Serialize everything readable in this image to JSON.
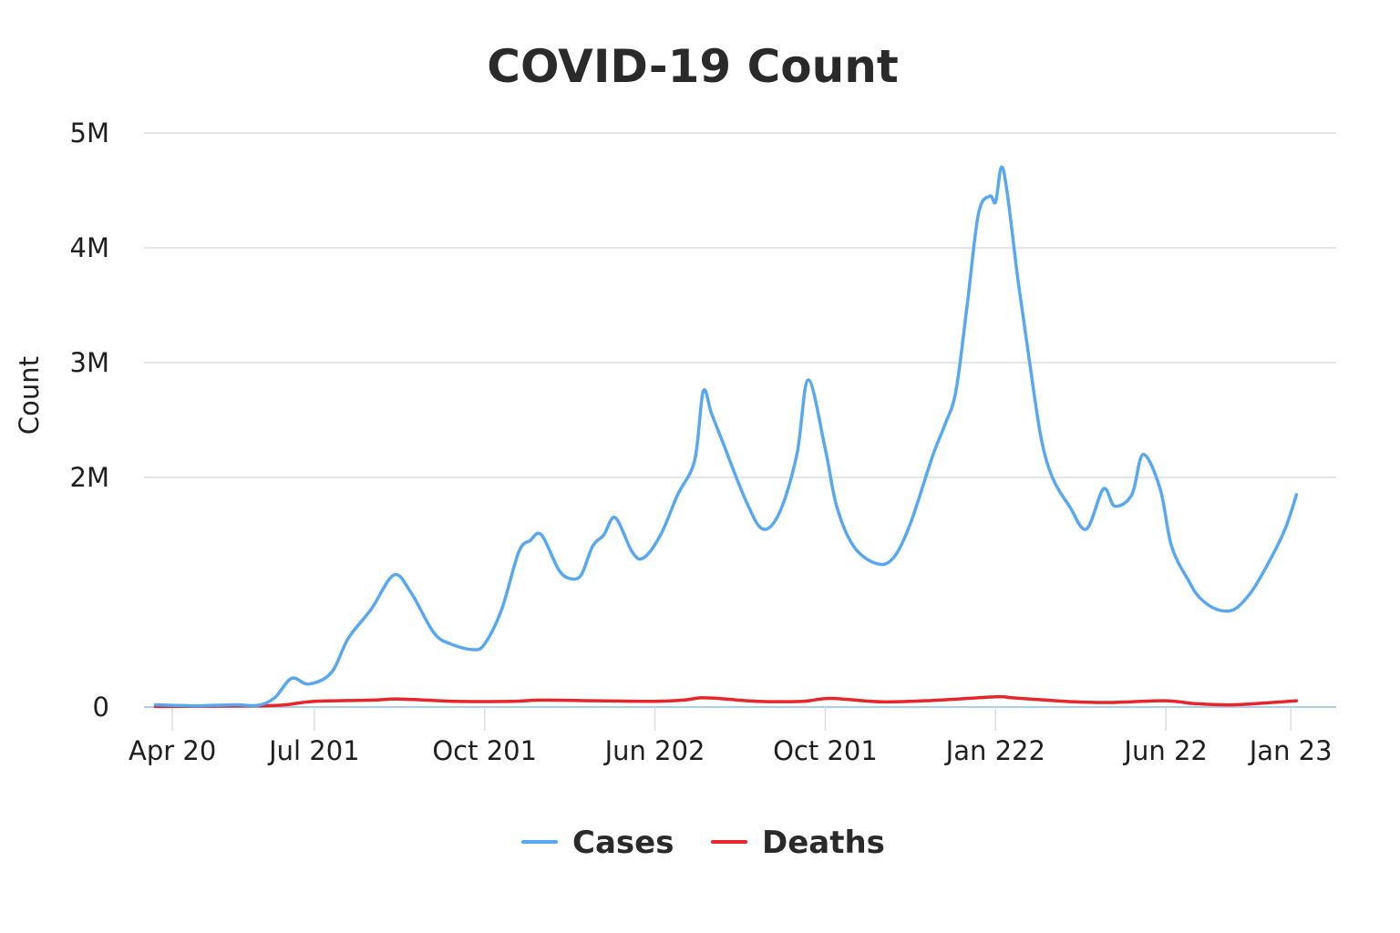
{
  "colors": {
    "cases": "#58a8f0",
    "deaths": "#e8252a",
    "grid": "#d9dde3",
    "baseline": "#a8cdef"
  },
  "chart_data": {
    "type": "line",
    "title": "COVID-19 Count",
    "xlabel": "",
    "ylabel": "Count",
    "ylim": [
      0,
      5000000
    ],
    "y_ticks": [
      {
        "value": 0,
        "label": "0"
      },
      {
        "value": 2000000,
        "label": "2M"
      },
      {
        "value": 3000000,
        "label": "3M"
      },
      {
        "value": 4000000,
        "label": "4M"
      },
      {
        "value": 5000000,
        "label": "5M"
      }
    ],
    "x_ticks": [
      {
        "x": 0.5,
        "label": "Apr 20"
      },
      {
        "x": 3,
        "label": "Jul 201"
      },
      {
        "x": 6,
        "label": "Oct 201"
      },
      {
        "x": 9,
        "label": "Jun 202"
      },
      {
        "x": 12,
        "label": "Oct 201"
      },
      {
        "x": 15,
        "label": "Jan 222"
      },
      {
        "x": 18,
        "label": "Jun 22"
      },
      {
        "x": 20.2,
        "label": "Jan 23"
      }
    ],
    "xlim": [
      0,
      21
    ],
    "grid": true,
    "legend_position": "bottom",
    "series": [
      {
        "name": "Cases",
        "color_key": "cases",
        "x": [
          0.2,
          0.9,
          1.6,
          2.0,
          2.3,
          2.6,
          2.9,
          3.3,
          3.6,
          4.0,
          4.4,
          4.7,
          5.1,
          5.4,
          5.8,
          6.0,
          6.3,
          6.6,
          6.8,
          7.0,
          7.3,
          7.5,
          7.7,
          7.9,
          8.1,
          8.3,
          8.6,
          8.8,
          9.1,
          9.4,
          9.7,
          9.85,
          10.0,
          10.2,
          10.6,
          10.9,
          11.2,
          11.5,
          11.7,
          12.0,
          12.2,
          12.5,
          12.9,
          13.2,
          13.5,
          13.9,
          14.1,
          14.3,
          14.5,
          14.7,
          14.9,
          15.0,
          15.1,
          15.2,
          15.4,
          15.6,
          15.8,
          16.0,
          16.3,
          16.6,
          16.9,
          17.1,
          17.4,
          17.6,
          17.9,
          18.1,
          18.4,
          18.6,
          18.9,
          19.2,
          19.5,
          19.8,
          20.1,
          20.3
        ],
        "y": [
          20000,
          10000,
          20000,
          15000,
          80000,
          250000,
          200000,
          300000,
          600000,
          850000,
          1150000,
          1000000,
          650000,
          550000,
          500000,
          550000,
          850000,
          1350000,
          1450000,
          1500000,
          1200000,
          1120000,
          1150000,
          1400000,
          1500000,
          1650000,
          1350000,
          1300000,
          1500000,
          1850000,
          2150000,
          2750000,
          2550000,
          2300000,
          1800000,
          1550000,
          1700000,
          2200000,
          2850000,
          2250000,
          1750000,
          1400000,
          1250000,
          1300000,
          1600000,
          2200000,
          2450000,
          2750000,
          3500000,
          4300000,
          4450000,
          4400000,
          4700000,
          4500000,
          3700000,
          3000000,
          2350000,
          2000000,
          1750000,
          1550000,
          1900000,
          1750000,
          1850000,
          2200000,
          1900000,
          1400000,
          1100000,
          950000,
          850000,
          850000,
          1000000,
          1250000,
          1550000,
          1850000
        ]
      },
      {
        "name": "Deaths",
        "color_key": "deaths",
        "x": [
          0.2,
          2.0,
          2.5,
          3.0,
          4.0,
          4.5,
          5.5,
          6.5,
          7.0,
          8.0,
          9.0,
          9.5,
          9.8,
          10.1,
          10.8,
          11.6,
          12.1,
          13.0,
          14.0,
          15.0,
          15.3,
          15.9,
          16.4,
          17.0,
          18.0,
          18.5,
          19.2,
          20.3
        ],
        "y": [
          5000,
          10000,
          20000,
          50000,
          60000,
          70000,
          50000,
          50000,
          60000,
          55000,
          50000,
          60000,
          80000,
          75000,
          50000,
          50000,
          75000,
          45000,
          60000,
          90000,
          80000,
          60000,
          45000,
          40000,
          55000,
          30000,
          20000,
          55000
        ]
      }
    ]
  }
}
